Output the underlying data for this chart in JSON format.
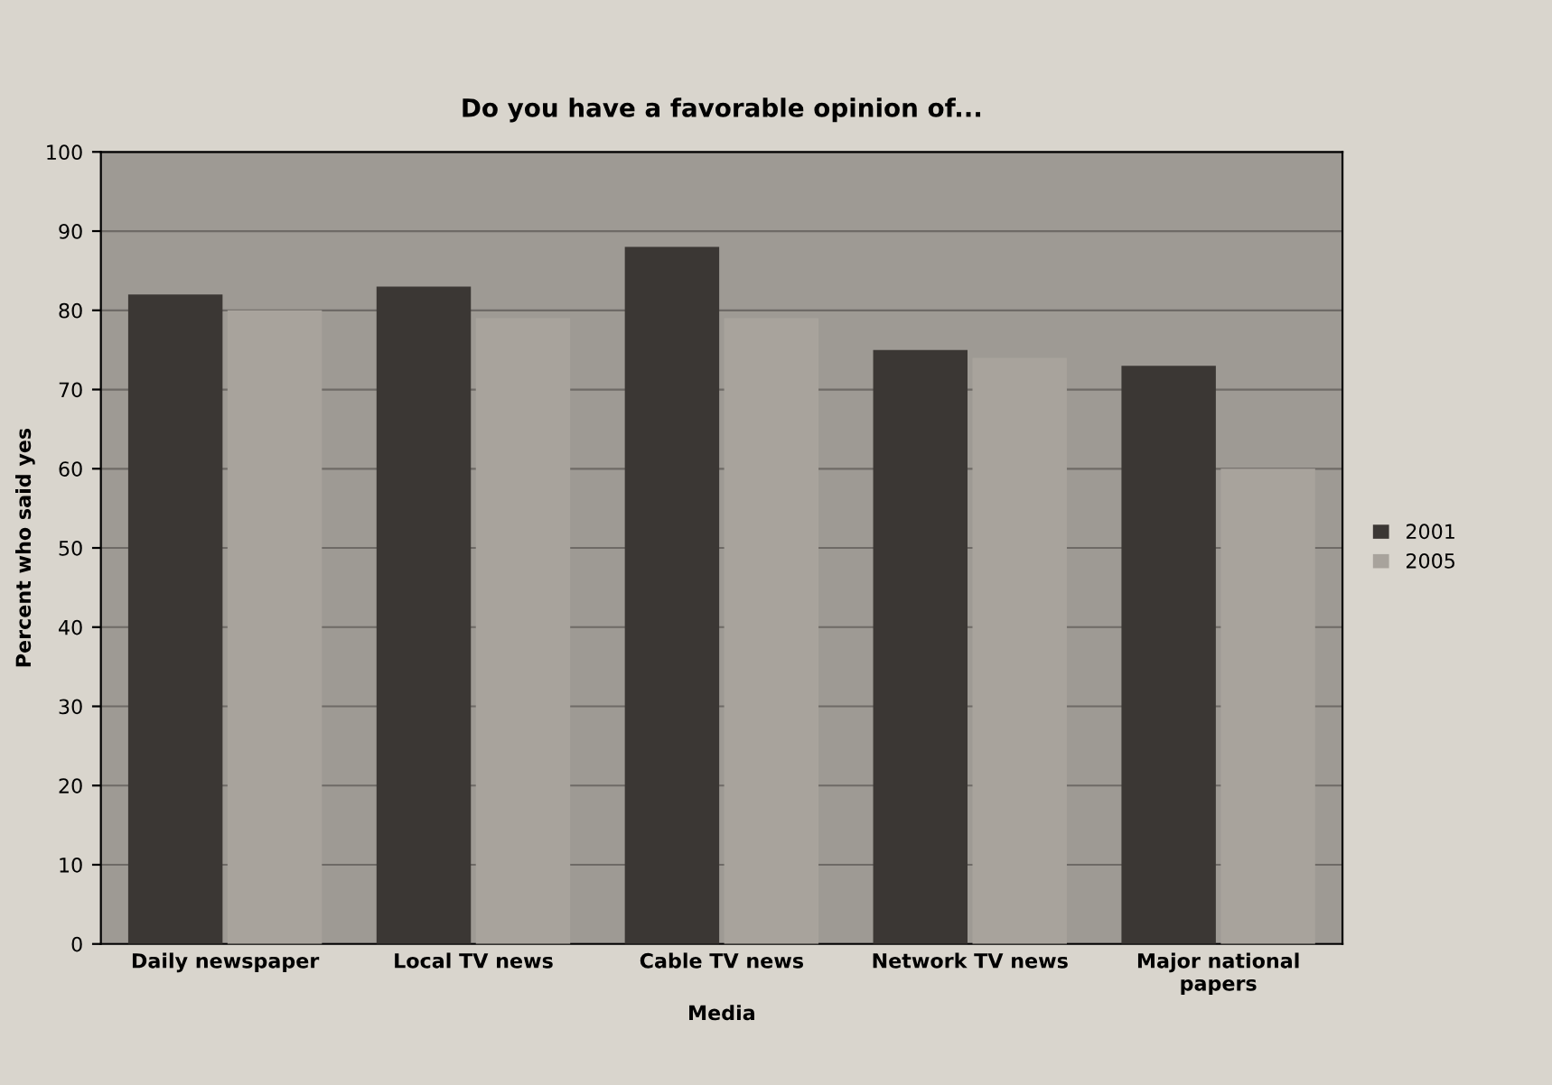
{
  "chart_data": {
    "type": "bar",
    "title": "Do you have a favorable opinion of...",
    "xlabel": "Media",
    "ylabel": "Percent who said yes",
    "categories": [
      "Daily newspaper",
      "Local TV news",
      "Cable TV news",
      "Network TV news",
      "Major national\npapers"
    ],
    "series": [
      {
        "name": "2001",
        "color": "#3b3734",
        "values": [
          82,
          83,
          88,
          75,
          73
        ]
      },
      {
        "name": "2005",
        "color": "#a8a39c",
        "values": [
          80,
          79,
          79,
          74,
          60
        ]
      }
    ],
    "ylim": [
      0,
      100
    ],
    "yticks": [
      0,
      10,
      20,
      30,
      40,
      50,
      60,
      70,
      80,
      90,
      100
    ],
    "grid": "y",
    "legend": "right"
  }
}
